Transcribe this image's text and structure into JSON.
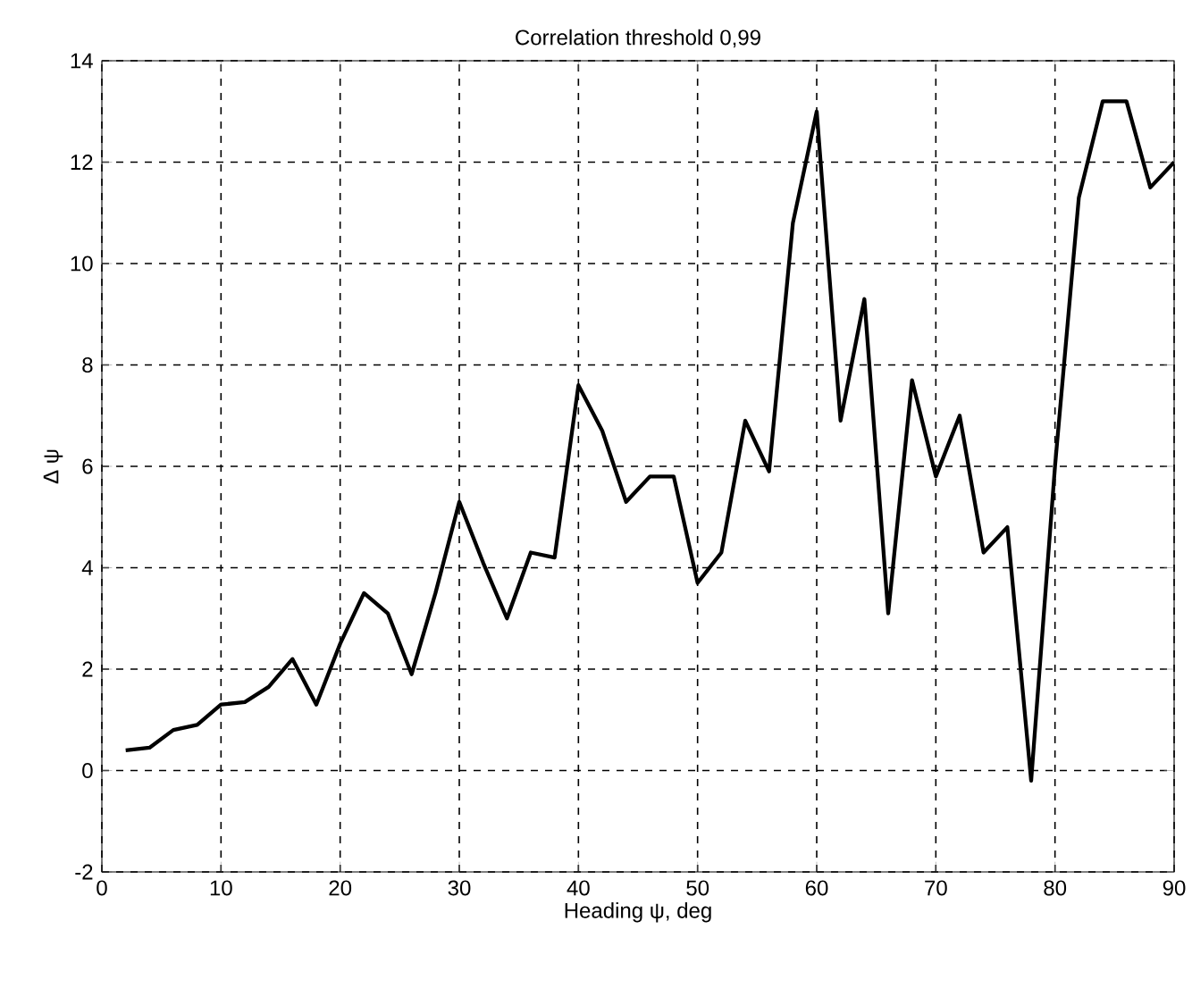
{
  "chart_data": {
    "type": "line",
    "title": "Correlation threshold 0,99",
    "xlabel": "Heading ψ, deg",
    "ylabel": "Δ ψ",
    "x": [
      2,
      4,
      6,
      8,
      10,
      12,
      14,
      16,
      18,
      20,
      22,
      24,
      26,
      28,
      30,
      32,
      34,
      36,
      38,
      40,
      42,
      44,
      46,
      48,
      50,
      52,
      54,
      56,
      58,
      60,
      62,
      64,
      66,
      68,
      70,
      72,
      74,
      76,
      78,
      80,
      82,
      84,
      86,
      88,
      90
    ],
    "series": [
      {
        "color": "#000000",
        "values": [
          0.4,
          0.45,
          0.8,
          0.9,
          1.3,
          1.35,
          1.65,
          2.2,
          1.3,
          2.5,
          3.5,
          3.1,
          1.9,
          3.5,
          5.3,
          4.1,
          3.0,
          4.3,
          4.2,
          7.6,
          6.7,
          5.3,
          5.8,
          5.8,
          3.7,
          4.3,
          6.9,
          5.9,
          10.8,
          13.0,
          6.9,
          9.3,
          3.1,
          7.7,
          5.8,
          7.0,
          4.3,
          4.8,
          -0.2,
          6.0,
          11.3,
          13.2,
          13.2,
          11.5,
          12.0
        ]
      }
    ],
    "xlim": [
      0,
      90
    ],
    "ylim": [
      -2,
      14
    ],
    "xticks": [
      0,
      10,
      20,
      30,
      40,
      50,
      60,
      70,
      80,
      90
    ],
    "yticks": [
      -2,
      0,
      2,
      4,
      6,
      8,
      10,
      12,
      14
    ],
    "grid": true,
    "marker": "none",
    "line_style": "solid"
  }
}
